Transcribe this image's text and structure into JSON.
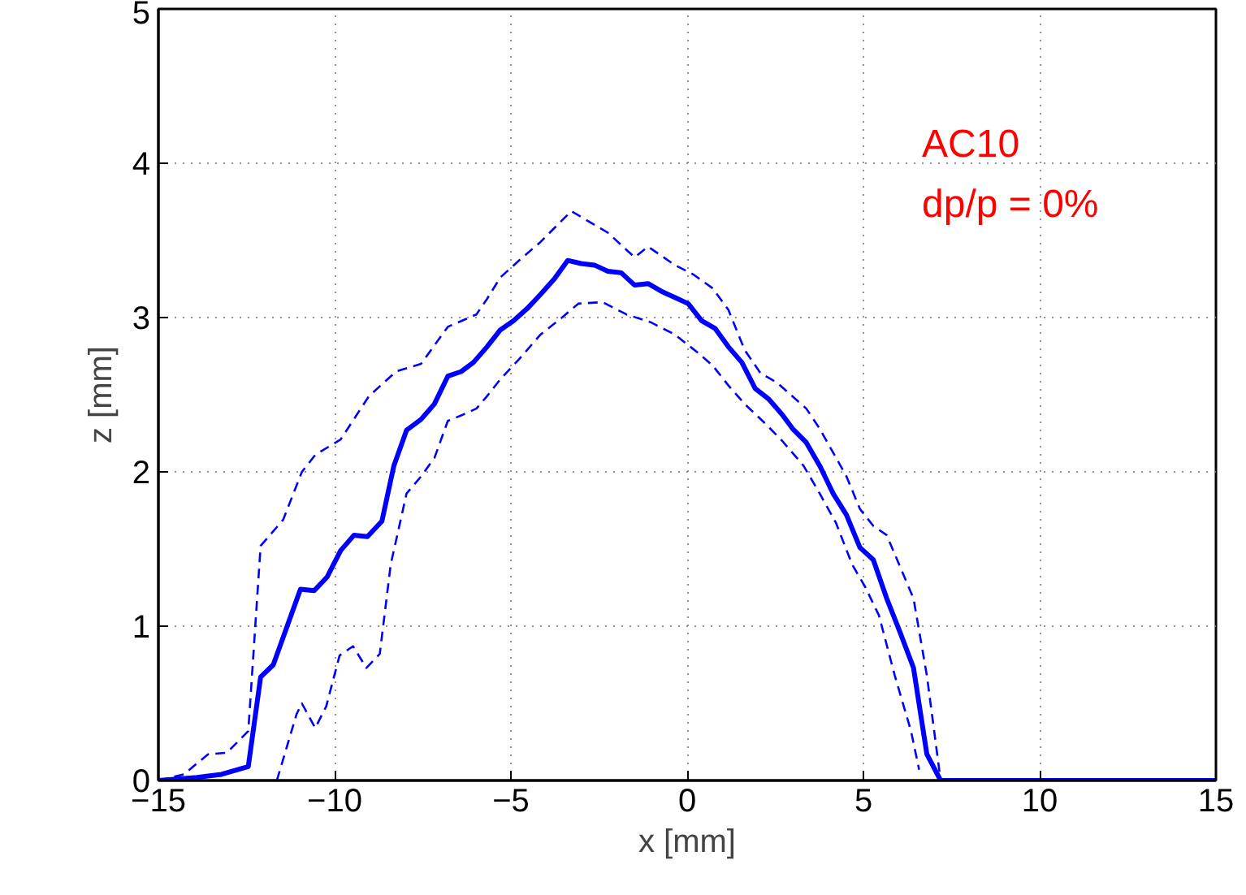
{
  "chart_data": {
    "type": "line",
    "xlabel": "x [mm]",
    "ylabel": "z [mm]",
    "annotations": [
      "AC10",
      "dp/p = 0%"
    ],
    "xlim": [
      -15,
      15
    ],
    "ylim": [
      0,
      5
    ],
    "xticks": [
      {
        "value": -15,
        "label": "−15"
      },
      {
        "value": -10,
        "label": "−10"
      },
      {
        "value": -5,
        "label": "−5"
      },
      0,
      5,
      10,
      15
    ],
    "yticks": [
      0,
      1,
      2,
      3,
      4,
      5
    ],
    "grid": true,
    "marker": "none",
    "series": [
      {
        "color": "#0000ff",
        "line_style": "solid",
        "x": [
          -15,
          -13.9,
          -13.21,
          -12.45,
          -12.1,
          -11.74,
          -10.97,
          -10.58,
          -10.21,
          -9.83,
          -9.45,
          -9.07,
          -8.66,
          -8.32,
          -7.96,
          -7.55,
          -7.17,
          -6.79,
          -6.41,
          -6.06,
          -5.68,
          -5.3,
          -4.92,
          -4.53,
          -4.16,
          -3.77,
          -3.39,
          -3.01,
          -2.63,
          -2.25,
          -1.87,
          -1.49,
          -1.11,
          -0.73,
          -0.35,
          0.03,
          0.41,
          0.79,
          1.17,
          1.55,
          1.93,
          2.32,
          2.7,
          2.99,
          3.38,
          3.76,
          4.14,
          4.52,
          4.9,
          5.28,
          5.66,
          6.04,
          6.42,
          6.8,
          7.19,
          15
        ],
        "values": [
          0,
          0.02,
          0.04,
          0.09,
          0.67,
          0.75,
          1.24,
          1.23,
          1.32,
          1.49,
          1.59,
          1.58,
          1.68,
          2.04,
          2.27,
          2.34,
          2.44,
          2.62,
          2.65,
          2.71,
          2.81,
          2.92,
          2.98,
          3.06,
          3.15,
          3.25,
          3.37,
          3.35,
          3.34,
          3.3,
          3.29,
          3.21,
          3.22,
          3.17,
          3.13,
          3.09,
          2.98,
          2.93,
          2.81,
          2.71,
          2.54,
          2.47,
          2.37,
          2.28,
          2.19,
          2.04,
          1.86,
          1.72,
          1.51,
          1.43,
          1.18,
          0.96,
          0.73,
          0.17,
          0,
          0
        ]
      },
      {
        "color": "#0000ff",
        "line_style": "dashed",
        "x": [
          -15,
          -14.28,
          -13.59,
          -13.06,
          -12.45,
          -12.1,
          -11.46,
          -10.93,
          -10.55,
          -9.83,
          -9.03,
          -8.26,
          -7.55,
          -6.79,
          -5.98,
          -5.68,
          -5.3,
          -4.77,
          -4.16,
          -3.29,
          -2.25,
          -1.49,
          -1.11,
          -0.35,
          0.17,
          0.72,
          1.17,
          1.63,
          2.08,
          2.54,
          3.38,
          3.76,
          4.52,
          4.9,
          5.28,
          5.66,
          6.42,
          6.8,
          7.11,
          7.19
        ],
        "values": [
          0,
          0.04,
          0.17,
          0.18,
          0.32,
          1.52,
          1.69,
          2.0,
          2.11,
          2.21,
          2.49,
          2.65,
          2.7,
          2.94,
          3.02,
          3.12,
          3.26,
          3.37,
          3.49,
          3.69,
          3.55,
          3.39,
          3.46,
          3.34,
          3.28,
          3.19,
          3.05,
          2.79,
          2.64,
          2.58,
          2.41,
          2.28,
          1.97,
          1.76,
          1.65,
          1.59,
          1.18,
          0.68,
          0.14,
          0
        ]
      },
      {
        "color": "#0000ff",
        "line_style": "dashed",
        "x": [
          -11.64,
          -11.08,
          -10.93,
          -10.55,
          -10.24,
          -9.86,
          -9.48,
          -9.1,
          -8.72,
          -8.41,
          -7.96,
          -7.55,
          -7.17,
          -6.79,
          -6.37,
          -5.98,
          -5.68,
          -5.3,
          -4.77,
          -4.16,
          -3.55,
          -3.09,
          -2.4,
          -1.72,
          -1.04,
          -0.35,
          0.26,
          0.72,
          1.17,
          1.63,
          2.23,
          2.7,
          3.3,
          3.76,
          4.22,
          4.68,
          5.06,
          5.44,
          5.89,
          6.35,
          6.58
        ],
        "values": [
          0,
          0.43,
          0.5,
          0.34,
          0.48,
          0.81,
          0.87,
          0.73,
          0.82,
          1.4,
          1.86,
          1.97,
          2.09,
          2.33,
          2.37,
          2.41,
          2.49,
          2.6,
          2.73,
          2.89,
          3.0,
          3.09,
          3.1,
          3.02,
          2.97,
          2.89,
          2.78,
          2.69,
          2.56,
          2.44,
          2.31,
          2.2,
          2.04,
          1.86,
          1.67,
          1.4,
          1.25,
          1.07,
          0.68,
          0.32,
          0.07
        ]
      }
    ]
  }
}
